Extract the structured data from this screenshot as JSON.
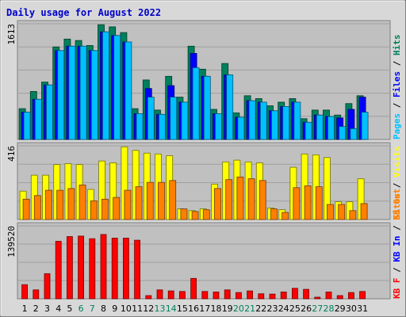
{
  "chart_data": {
    "type": "bar",
    "title": "Daily usage for August 2022",
    "categories": [
      "1",
      "2",
      "3",
      "4",
      "5",
      "6",
      "7",
      "8",
      "9",
      "10",
      "11",
      "12",
      "13",
      "14",
      "15",
      "16",
      "17",
      "18",
      "19",
      "20",
      "21",
      "22",
      "23",
      "24",
      "25",
      "26",
      "27",
      "28",
      "29",
      "30",
      "31"
    ],
    "weekend_days": [
      "6",
      "7",
      "13",
      "14",
      "20",
      "21",
      "27",
      "28"
    ],
    "colors": {
      "title": "#0000cc",
      "hits": "#00805c",
      "files": "#0000ff",
      "pages": "#00c0ff",
      "visits": "#ffff00",
      "sites": "#ff8000",
      "kb_f": "#ff0000",
      "kb_in": "#0000ff",
      "kb_out": "#ff8000",
      "weekend_label": "#00805c",
      "weekday_label": "#000000",
      "panel_bg": "#c0c0c0",
      "frame_bg": "#d8d8d8"
    },
    "panels": [
      {
        "id": "hits-files-pages",
        "ymax_label": "1613",
        "ymax": 1613,
        "legend": [
          {
            "key": "pages",
            "text": "Pages"
          },
          {
            "key": "sep",
            "text": " / "
          },
          {
            "key": "files",
            "text": "Files"
          },
          {
            "key": "sep",
            "text": " / "
          },
          {
            "key": "hits",
            "text": "Hits"
          }
        ],
        "series": [
          {
            "name": "Hits",
            "key": "hits",
            "values": [
              430,
              670,
              800,
              1290,
              1400,
              1380,
              1310,
              1600,
              1570,
              1490,
              430,
              830,
              410,
              880,
              590,
              1300,
              980,
              420,
              1060,
              370,
              610,
              570,
              470,
              520,
              570,
              290,
              410,
              410,
              340,
              500,
              610
            ]
          },
          {
            "name": "Files",
            "key": "files",
            "values": [
              380,
              560,
              760,
              1240,
              1300,
              1300,
              1240,
              1500,
              1450,
              1360,
              360,
              710,
              350,
              750,
              520,
              1200,
              880,
              360,
              900,
              310,
              540,
              520,
              400,
              460,
              520,
              240,
              340,
              320,
              300,
              420,
              590
            ]
          },
          {
            "name": "Pages",
            "key": "pages",
            "values": [
              380,
              560,
              760,
              1240,
              1300,
              1300,
              1240,
              1500,
              1450,
              1360,
              360,
              590,
              350,
              590,
              520,
              1000,
              880,
              360,
              900,
              310,
              540,
              520,
              400,
              460,
              520,
              240,
              340,
              320,
              180,
              150,
              380
            ]
          }
        ]
      },
      {
        "id": "visits-sites",
        "ymax_label": "416",
        "ymax": 416,
        "legend": [
          {
            "key": "sites",
            "text": "Sites"
          },
          {
            "key": "sep",
            "text": " / "
          },
          {
            "key": "visits",
            "text": "Visits"
          }
        ],
        "series": [
          {
            "name": "Visits",
            "key": "visits",
            "values": [
              160,
              250,
              250,
              310,
              315,
              310,
              170,
              330,
              320,
              410,
              390,
              375,
              370,
              360,
              60,
              50,
              60,
              200,
              325,
              335,
              325,
              320,
              65,
              55,
              295,
              370,
              365,
              350,
              100,
              100,
              230
            ]
          },
          {
            "name": "Sites",
            "key": "sites",
            "values": [
              115,
              135,
              165,
              165,
              175,
              195,
              105,
              115,
              125,
              165,
              185,
              210,
              210,
              220,
              60,
              45,
              55,
              175,
              225,
              240,
              230,
              220,
              60,
              40,
              180,
              190,
              185,
              85,
              85,
              50,
              90
            ]
          }
        ]
      },
      {
        "id": "kb",
        "ymax_label": "139520",
        "ymax": 139520,
        "legend": [
          {
            "key": "kb_f",
            "text": "KB F"
          },
          {
            "key": "sep",
            "text": " / "
          },
          {
            "key": "kb_in",
            "text": "KB In"
          },
          {
            "key": "sep",
            "text": " / "
          },
          {
            "key": "kb_out",
            "text": "KB Out"
          }
        ],
        "series": [
          {
            "name": "KB F",
            "key": "kb_f",
            "values": [
              27000,
              17000,
              48000,
              110000,
              119000,
              120000,
              115000,
              123000,
              116000,
              116000,
              112000,
              6000,
              17000,
              15000,
              14000,
              39000,
              14000,
              13000,
              17000,
              12000,
              15000,
              9500,
              9000,
              13000,
              20000,
              18000,
              3000,
              13000,
              6000,
              12000,
              14000
            ]
          }
        ]
      }
    ]
  }
}
